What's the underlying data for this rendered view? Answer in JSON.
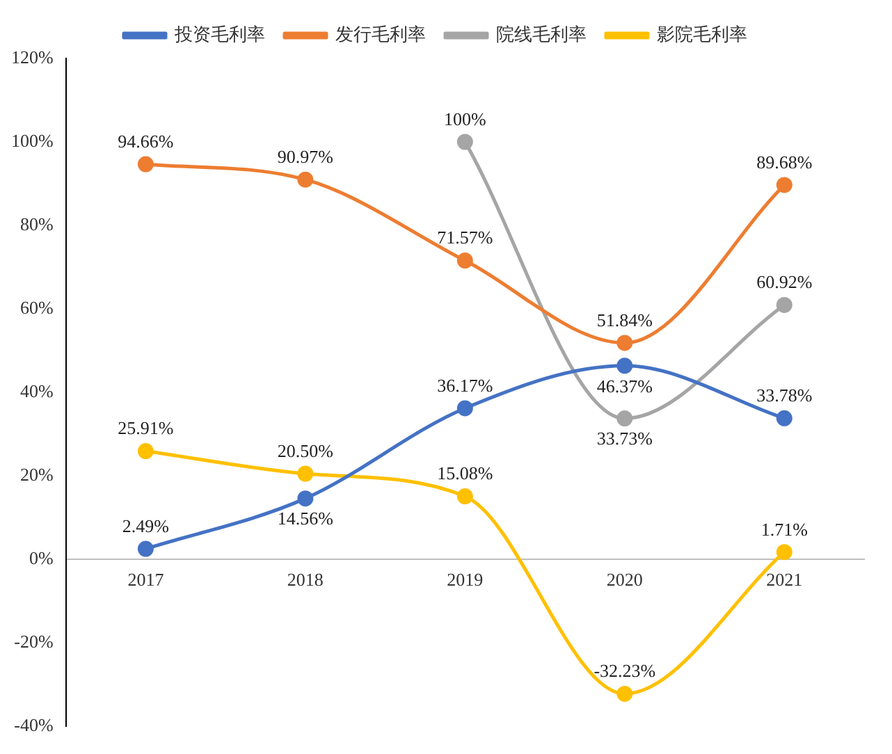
{
  "chart_data": {
    "type": "line",
    "categories": [
      "2017",
      "2018",
      "2019",
      "2020",
      "2021"
    ],
    "series": [
      {
        "name": "投资毛利率",
        "color": "#4472c4",
        "values": [
          2.49,
          14.56,
          36.17,
          46.37,
          33.78
        ],
        "value_labels": [
          "2.49%",
          "14.56%",
          "36.17%",
          "46.37%",
          "33.78%"
        ]
      },
      {
        "name": "发行毛利率",
        "color": "#ed7d31",
        "values": [
          94.66,
          90.97,
          71.57,
          51.84,
          89.68
        ],
        "value_labels": [
          "94.66%",
          "90.97%",
          "71.57%",
          "51.84%",
          "89.68%"
        ]
      },
      {
        "name": "院线毛利率",
        "color": "#a5a5a5",
        "values": [
          null,
          null,
          100,
          33.73,
          60.92
        ],
        "value_labels": [
          null,
          null,
          "100%",
          "33.73%",
          "60.92%"
        ]
      },
      {
        "name": "影院毛利率",
        "color": "#ffc000",
        "values": [
          25.91,
          20.5,
          15.08,
          -32.23,
          1.71
        ],
        "value_labels": [
          "25.91%",
          "20.50%",
          "15.08%",
          "-32.23%",
          "1.71%"
        ]
      }
    ],
    "ylim": [
      -40,
      120
    ],
    "yticks": [
      {
        "value": -40,
        "label": "-40%"
      },
      {
        "value": -20,
        "label": "-20%"
      },
      {
        "value": 0,
        "label": "0%"
      },
      {
        "value": 20,
        "label": "20%"
      },
      {
        "value": 40,
        "label": "40%"
      },
      {
        "value": 60,
        "label": "60%"
      },
      {
        "value": 80,
        "label": "80%"
      },
      {
        "value": 100,
        "label": "100%"
      },
      {
        "value": 120,
        "label": "120%"
      }
    ],
    "grid": false,
    "legend": "top",
    "marker": "circle",
    "line_style": "solid"
  }
}
